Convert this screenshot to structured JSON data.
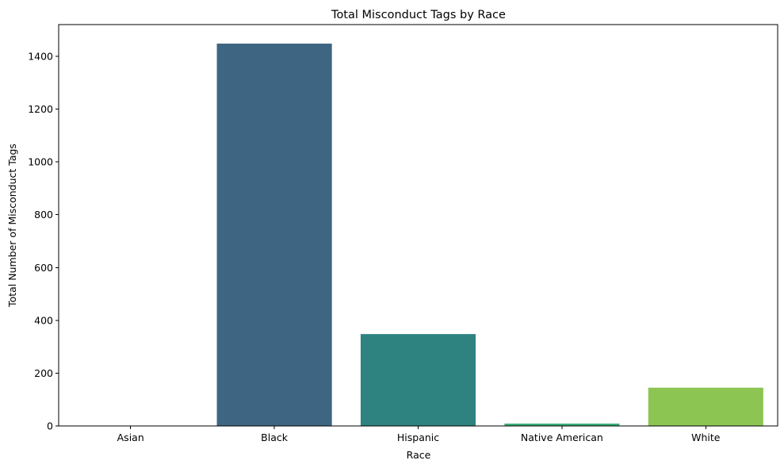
{
  "chart_data": {
    "type": "bar",
    "title": "Total Misconduct Tags by Race",
    "xlabel": "Race",
    "ylabel": "Total Number of Misconduct Tags",
    "categories": [
      "Asian",
      "Black",
      "Hispanic",
      "Native American",
      "White"
    ],
    "values": [
      0,
      1448,
      348,
      9,
      145
    ],
    "colors": [
      "#440154",
      "#3e6682",
      "#2e8380",
      "#3dae78",
      "#8dc553"
    ],
    "ylim": [
      0,
      1520
    ],
    "yticks": [
      0,
      200,
      400,
      600,
      800,
      1000,
      1200,
      1400
    ],
    "grid": false,
    "legend": "none"
  }
}
